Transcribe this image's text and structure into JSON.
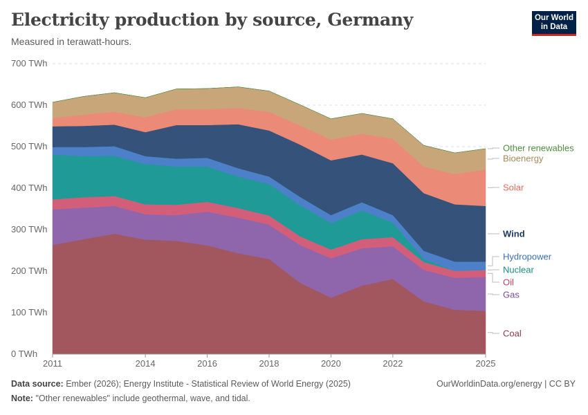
{
  "header": {
    "title": "Electricity production by source, Germany",
    "subtitle": "Measured in terawatt-hours.",
    "logo_line1": "Our World",
    "logo_line2": "in Data"
  },
  "footer": {
    "source_label": "Data source:",
    "source_text": "Ember (2026); Energy Institute - Statistical Review of World Energy (2025)",
    "note_label": "Note:",
    "note_text": "\"Other renewables\" include geothermal, wave, and tidal.",
    "credit": "OurWorldinData.org/energy | CC BY"
  },
  "chart_data": {
    "type": "area",
    "stacked": true,
    "unit": "TWh",
    "x": [
      2011,
      2012,
      2013,
      2014,
      2015,
      2016,
      2017,
      2018,
      2019,
      2020,
      2021,
      2022,
      2023,
      2024,
      2025
    ],
    "x_ticks": [
      "2011",
      "2014",
      "2016",
      "2018",
      "2020",
      "2022",
      "2025"
    ],
    "y_ticks": [
      "0 TWh",
      "100 TWh",
      "200 TWh",
      "300 TWh",
      "400 TWh",
      "500 TWh",
      "600 TWh",
      "700 TWh"
    ],
    "ylim": [
      0,
      700
    ],
    "grid": true,
    "legend_position": "right",
    "series": [
      {
        "name": "Coal",
        "color": "#a2565e",
        "values": [
          263,
          277,
          290,
          276,
          273,
          262,
          243,
          229,
          172,
          136,
          165,
          181,
          127,
          107,
          104
        ]
      },
      {
        "name": "Gas",
        "color": "#8f65ab",
        "values": [
          86,
          76,
          67,
          61,
          62,
          81,
          86,
          83,
          91,
          95,
          90,
          79,
          76,
          77,
          82
        ]
      },
      {
        "name": "Oil",
        "color": "#d35e7a",
        "values": [
          24,
          25,
          24,
          24,
          25,
          24,
          23,
          22,
          21,
          21,
          22,
          22,
          19,
          17,
          17
        ]
      },
      {
        "name": "Nuclear",
        "color": "#1f9a96",
        "values": [
          108,
          99,
          97,
          97,
          92,
          85,
          76,
          76,
          75,
          64,
          69,
          35,
          7,
          0,
          0
        ]
      },
      {
        "name": "Hydropower",
        "color": "#4c80c8",
        "values": [
          18,
          22,
          23,
          19,
          19,
          21,
          20,
          18,
          20,
          19,
          20,
          18,
          20,
          22,
          20
        ]
      },
      {
        "name": "Wind",
        "color": "#34527a",
        "values": [
          50,
          51,
          52,
          58,
          81,
          79,
          106,
          111,
          126,
          132,
          115,
          125,
          139,
          138,
          134
        ]
      },
      {
        "name": "Solar",
        "color": "#ec8a78",
        "values": [
          20,
          27,
          31,
          36,
          38,
          38,
          39,
          45,
          46,
          50,
          50,
          59,
          64,
          73,
          88
        ]
      },
      {
        "name": "Bioenergy",
        "color": "#c9a57a",
        "values": [
          38,
          44,
          46,
          47,
          49,
          50,
          51,
          50,
          50,
          50,
          49,
          48,
          51,
          51,
          50
        ]
      },
      {
        "name": "Other renewables",
        "color": "#3f8a3f",
        "values": [
          0,
          0,
          0,
          0,
          0,
          0,
          0,
          0,
          0,
          0,
          0,
          0,
          0,
          0,
          0
        ]
      }
    ],
    "label_colors": {
      "Other renewables": "#4f8d3e",
      "Bioenergy": "#a98a5c",
      "Solar": "#e06e5b",
      "Wind": "#1d365b",
      "Hydropower": "#3a6eb6",
      "Nuclear": "#1b8a86",
      "Oil": "#c4445f",
      "Gas": "#7c4a98",
      "Coal": "#8a3b46"
    }
  }
}
